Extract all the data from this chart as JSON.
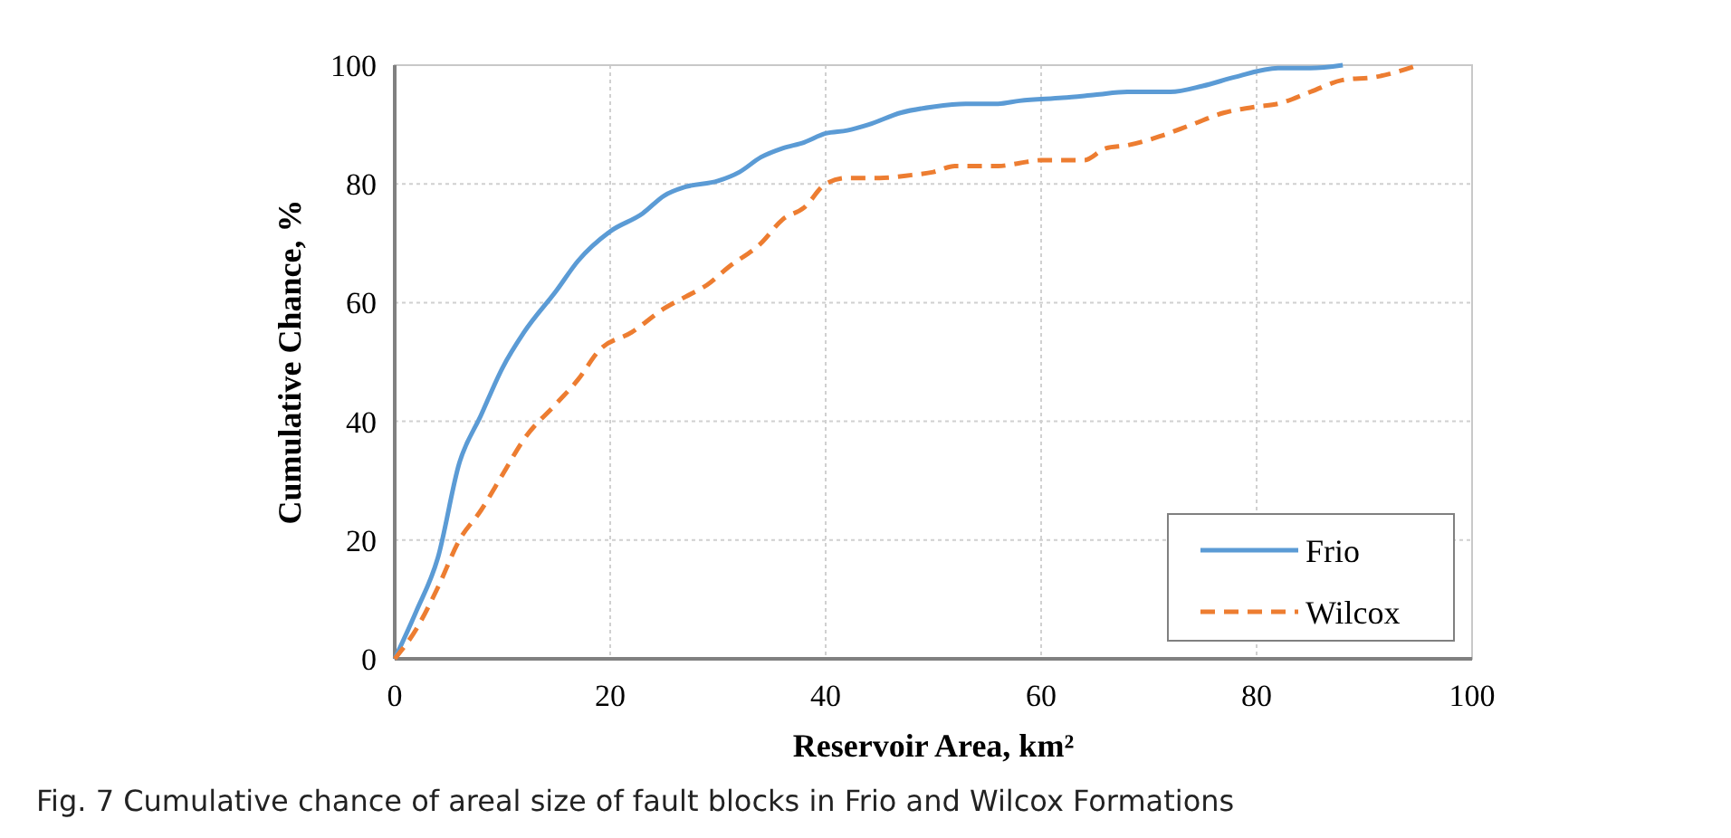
{
  "chart_data": {
    "type": "line",
    "xlabel": "Reservoir Area, km²",
    "ylabel": "Cumulative Chance, %",
    "annotations": [
      "Fig. 7  Cumulative chance of areal size of fault blocks in Frio and Wilcox Formations"
    ],
    "xlim": [
      0,
      100
    ],
    "xticks": [
      0,
      20,
      40,
      60,
      80,
      100
    ],
    "ylim": [
      0,
      100
    ],
    "yticks": [
      0,
      20,
      40,
      60,
      80,
      100
    ],
    "grid": true,
    "legend": "bottom right",
    "marker": "none",
    "series": [
      {
        "name": "Frio",
        "color": "#5b9bd5",
        "line_style": "solid",
        "x": [
          0,
          2,
          4,
          6,
          8,
          10,
          12,
          15,
          17,
          20,
          23,
          25,
          27,
          30,
          32,
          34,
          36,
          38,
          40,
          42,
          44,
          47,
          50,
          53,
          56,
          58,
          62,
          65,
          68,
          72,
          75,
          78,
          82,
          85,
          88
        ],
        "values": [
          0,
          8,
          17,
          33,
          41,
          49,
          55,
          62,
          67,
          72,
          75,
          78,
          79.5,
          80.5,
          82,
          84.5,
          86,
          87,
          88.5,
          89,
          90,
          92,
          93,
          93.5,
          93.5,
          94,
          94.5,
          95,
          95.5,
          95.5,
          96.5,
          98,
          99.5,
          99.5,
          100
        ]
      },
      {
        "name": "Wilcox",
        "color": "#ed7d31",
        "line_style": "dashed",
        "x": [
          0,
          2,
          4,
          6,
          8,
          10,
          12,
          15,
          17,
          19,
          22,
          25,
          27,
          29,
          31,
          34,
          36,
          38,
          40,
          42,
          45,
          48,
          50,
          52,
          56,
          58,
          60,
          62,
          64,
          66,
          68,
          71,
          74,
          77,
          80,
          82,
          85,
          88,
          91,
          95
        ],
        "values": [
          0,
          5,
          12,
          20,
          25,
          31,
          37,
          43,
          47,
          52,
          55,
          59,
          61,
          63,
          66,
          70,
          74,
          76,
          80,
          81,
          81,
          81.5,
          82,
          83,
          83,
          83.5,
          84,
          84,
          84,
          86,
          86.5,
          88,
          90,
          92,
          93,
          93.5,
          95.5,
          97.5,
          98,
          100
        ]
      }
    ]
  }
}
